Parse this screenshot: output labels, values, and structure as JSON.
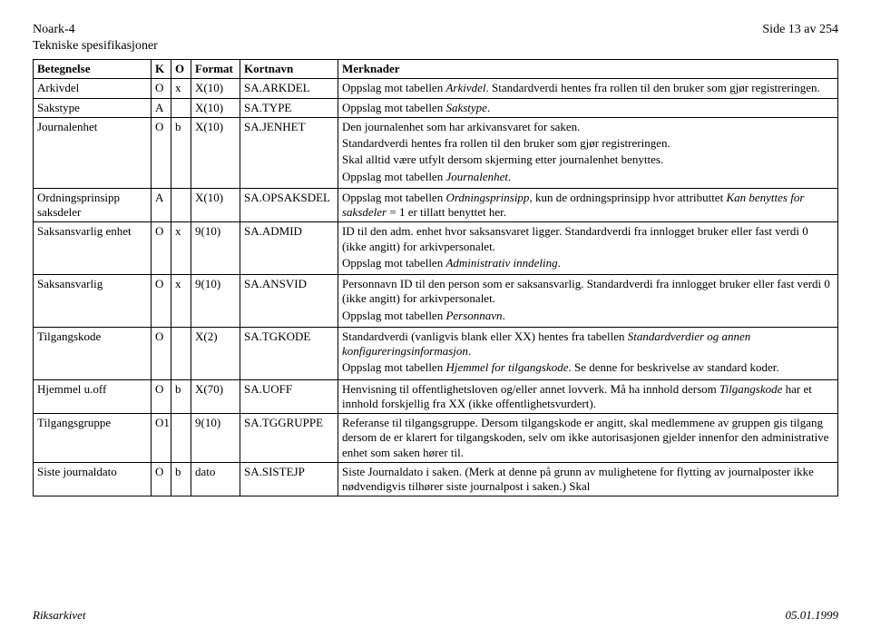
{
  "header": {
    "doc_title": "Noark-4",
    "subtitle": "Tekniske spesifikasjoner",
    "page_label": "Side 13 av 254"
  },
  "footer": {
    "left": "Riksarkivet",
    "right": "05.01.1999"
  },
  "table": {
    "columns": [
      "Betegnelse",
      "K",
      "O",
      "Format",
      "Kortnavn",
      "Merknader"
    ],
    "rows": [
      {
        "betegnelse": "Arkivdel",
        "k": "O",
        "o": "x",
        "format": "X(10)",
        "kortnavn": "SA.ARKDEL",
        "merk_plain1": "Oppslag mot tabellen ",
        "merk_italic1": "Arkivdel",
        "merk_plain2": ". Standardverdi hentes fra rollen til den bruker som gjør registreringen."
      },
      {
        "betegnelse": "Sakstype",
        "k": "A",
        "o": "",
        "format": "X(10)",
        "kortnavn": "SA.TYPE",
        "merk_plain1": "Oppslag mot tabellen ",
        "merk_italic1": "Sakstype",
        "merk_plain2": "."
      },
      {
        "betegnelse": "Journalenhet",
        "k": "O",
        "o": "b",
        "format": "X(10)",
        "kortnavn": "SA.JENHET",
        "merk_line1": "Den journalenhet som har arkivansvaret for saken.",
        "merk_line2": "Standardverdi hentes fra rollen til den bruker som gjør registreringen.",
        "merk_line3": "Skal alltid være utfylt dersom skjerming etter journalenhet benyttes.",
        "merk_plain1": "Oppslag mot tabellen ",
        "merk_italic1": "Journalenhet",
        "merk_plain2": "."
      },
      {
        "betegnelse": "Ordningsprinsipp saksdeler",
        "k": "A",
        "o": "",
        "format": "X(10)",
        "kortnavn": "SA.OPSAKSDEL",
        "merk_plain1": "Oppslag mot tabellen ",
        "merk_italic1": "Ordningsprinsipp",
        "merk_plain2": ", kun de ordningsprinsipp hvor attributtet ",
        "merk_italic2": "Kan benyttes for saksdeler",
        "merk_plain3": " = 1 er tillatt benyttet her."
      },
      {
        "betegnelse": "Saksansvarlig enhet",
        "k": "O",
        "o": "x",
        "format": "9(10)",
        "kortnavn": "SA.ADMID",
        "merk_line1": "ID til den adm. enhet hvor saksansvaret ligger. Standardverdi fra innlogget bruker eller fast verdi 0 (ikke angitt) for arkivpersonalet.",
        "merk_plain1": "Oppslag mot tabellen ",
        "merk_italic1": "Administrativ inndeling",
        "merk_plain2": "."
      },
      {
        "betegnelse": "Saksansvarlig",
        "k": "O",
        "o": "x",
        "format": "9(10)",
        "kortnavn": "SA.ANSVID",
        "merk_line1": "Personnavn ID til den person som er saksansvarlig. Standardverdi fra innlogget bruker eller fast verdi 0 (ikke angitt) for arkivpersonalet.",
        "merk_plain1": "Oppslag mot tabellen ",
        "merk_italic1": "Personnavn",
        "merk_plain2": "."
      },
      {
        "betegnelse": "Tilgangskode",
        "k": "O",
        "o": "",
        "format": "X(2)",
        "kortnavn": "SA.TGKODE",
        "merk_plain1": "Standardverdi (vanligvis blank eller XX) hentes fra tabellen ",
        "merk_italic1": "Standardverdier og annen konfigureringsinformasjon",
        "merk_plain2": ".",
        "merk_line2a": "Oppslag mot tabellen ",
        "merk_line2b_italic": "Hjemmel for tilgangskode",
        "merk_line2c": ". Se denne for beskrivelse av standard koder."
      },
      {
        "betegnelse": "Hjemmel u.off",
        "k": "O",
        "o": "b",
        "format": "X(70)",
        "kortnavn": "SA.UOFF",
        "merk_plain1": "Henvisning til offentlighetsloven og/eller annet lovverk. Må ha innhold dersom ",
        "merk_italic1": "Tilgangskode",
        "merk_plain2": " har et innhold forskjellig fra XX (ikke offentlighetsvurdert)."
      },
      {
        "betegnelse": "Tilgangsgruppe",
        "k": "O1",
        "o": "",
        "format": "9(10)",
        "kortnavn": "SA.TGGRUPPE",
        "merk_plain1": "Referanse til tilgangsgruppe. Dersom tilgangskode er angitt, skal medlemmene av gruppen gis tilgang dersom de er klarert for tilgangskoden, selv om ikke autorisasjonen gjelder innenfor den administrative enhet som saken hører til."
      },
      {
        "betegnelse": "Siste journaldato",
        "k": "O",
        "o": "b",
        "format": "dato",
        "kortnavn": "SA.SISTEJP",
        "merk_plain1": "Siste Journaldato i saken. (Merk at denne på grunn av mulighetene for flytting av journalposter ikke nødvendigvis tilhører siste journalpost i saken.) Skal"
      }
    ]
  }
}
